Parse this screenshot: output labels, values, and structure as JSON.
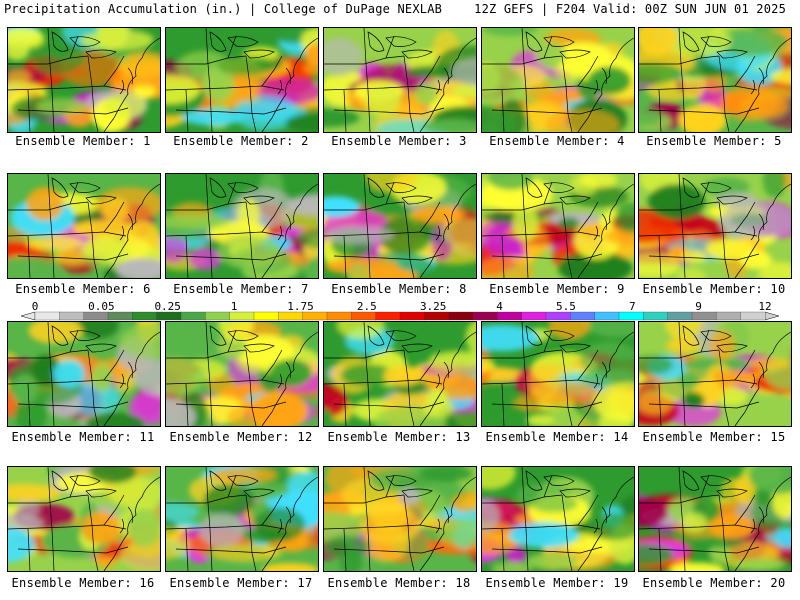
{
  "header": {
    "left": "Precipitation Accumulation (in.) | College of DuPage NEXLAB",
    "right": "12Z GEFS | F204 Valid: 00Z SUN JUN 01 2025"
  },
  "caption_prefix": "Ensemble Member: ",
  "members": [
    {
      "caption": "Ensemble Member: 1"
    },
    {
      "caption": "Ensemble Member: 2"
    },
    {
      "caption": "Ensemble Member: 3"
    },
    {
      "caption": "Ensemble Member: 4"
    },
    {
      "caption": "Ensemble Member: 5"
    },
    {
      "caption": "Ensemble Member: 6"
    },
    {
      "caption": "Ensemble Member: 7"
    },
    {
      "caption": "Ensemble Member: 8"
    },
    {
      "caption": "Ensemble Member: 9"
    },
    {
      "caption": "Ensemble Member: 10"
    },
    {
      "caption": "Ensemble Member: 11"
    },
    {
      "caption": "Ensemble Member: 12"
    },
    {
      "caption": "Ensemble Member: 13"
    },
    {
      "caption": "Ensemble Member: 14"
    },
    {
      "caption": "Ensemble Member: 15"
    },
    {
      "caption": "Ensemble Member: 16"
    },
    {
      "caption": "Ensemble Member: 17"
    },
    {
      "caption": "Ensemble Member: 18"
    },
    {
      "caption": "Ensemble Member: 19"
    },
    {
      "caption": "Ensemble Member: 20"
    }
  ],
  "colorbar": {
    "tick_labels": [
      "0",
      "0.05",
      "0.25",
      "1",
      "1.75",
      "2.5",
      "3.25",
      "4",
      "5.5",
      "7",
      "9",
      "12"
    ],
    "colors": [
      "#e8e8e8",
      "#bdbdbd",
      "#8c8c8c",
      "#5e8c5e",
      "#2e8b2e",
      "#1f6f1f",
      "#4aa84a",
      "#8fd14f",
      "#d6ef3b",
      "#ffff00",
      "#ffd700",
      "#ffb000",
      "#ff8c00",
      "#ff5a00",
      "#ff2000",
      "#e00000",
      "#b40000",
      "#8b0010",
      "#9c0050",
      "#c000a0",
      "#e020e0",
      "#b040ff",
      "#6080ff",
      "#40c0ff",
      "#00ffff",
      "#30d0c0",
      "#60a0a0",
      "#909090",
      "#b0b0b0",
      "#d0d0d0"
    ]
  }
}
